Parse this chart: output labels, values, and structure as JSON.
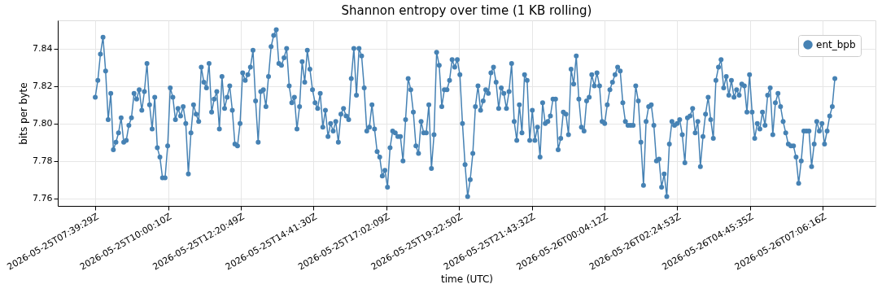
{
  "chart_data": {
    "type": "line",
    "title": "Shannon entropy over time (1 KB rolling)",
    "xlabel": "time (UTC)",
    "ylabel": "bits per byte",
    "x": [
      "2026-05-25T07:39:29",
      "2026-05-25T07:44:29",
      "2026-05-25T07:49:29",
      "2026-05-25T07:54:29",
      "2026-05-25T07:59:29",
      "2026-05-25T08:04:29",
      "2026-05-25T08:09:29",
      "2026-05-25T08:14:29",
      "2026-05-25T08:19:29",
      "2026-05-25T08:24:29",
      "2026-05-25T08:29:29",
      "2026-05-25T08:34:29",
      "2026-05-25T08:39:29",
      "2026-05-25T08:44:29",
      "2026-05-25T08:49:29",
      "2026-05-25T08:54:29",
      "2026-05-25T08:59:29",
      "2026-05-25T09:04:29",
      "2026-05-25T09:09:29",
      "2026-05-25T09:14:29",
      "2026-05-25T09:19:29",
      "2026-05-25T09:24:29",
      "2026-05-25T09:29:29",
      "2026-05-25T09:34:29",
      "2026-05-25T09:39:29",
      "2026-05-25T09:44:29",
      "2026-05-25T09:49:29",
      "2026-05-25T09:54:29",
      "2026-05-25T09:59:29",
      "2026-05-25T10:04:29",
      "2026-05-25T10:09:29",
      "2026-05-25T10:14:29",
      "2026-05-25T10:19:29",
      "2026-05-25T10:24:29",
      "2026-05-25T10:29:29",
      "2026-05-25T10:34:29",
      "2026-05-25T10:39:29",
      "2026-05-25T10:44:29",
      "2026-05-25T10:49:29",
      "2026-05-25T10:54:29",
      "2026-05-25T10:59:29",
      "2026-05-25T11:04:29",
      "2026-05-25T11:09:29",
      "2026-05-25T11:14:29",
      "2026-05-25T11:19:29",
      "2026-05-25T11:24:29",
      "2026-05-25T11:29:29",
      "2026-05-25T11:34:29",
      "2026-05-25T11:39:29",
      "2026-05-25T11:44:29",
      "2026-05-25T11:49:29",
      "2026-05-25T11:54:29",
      "2026-05-25T11:59:29",
      "2026-05-25T12:04:29",
      "2026-05-25T12:09:29",
      "2026-05-25T12:14:29",
      "2026-05-25T12:19:29",
      "2026-05-25T12:24:29",
      "2026-05-25T12:29:29",
      "2026-05-25T12:34:29",
      "2026-05-25T12:39:29",
      "2026-05-25T12:44:29",
      "2026-05-25T12:49:29",
      "2026-05-25T12:54:29",
      "2026-05-25T12:59:29",
      "2026-05-25T13:04:29",
      "2026-05-25T13:09:29",
      "2026-05-25T13:14:29",
      "2026-05-25T13:19:29",
      "2026-05-25T13:24:29",
      "2026-05-25T13:29:29",
      "2026-05-25T13:34:29",
      "2026-05-25T13:39:29",
      "2026-05-25T13:44:29",
      "2026-05-25T13:49:29",
      "2026-05-25T13:54:29",
      "2026-05-25T13:59:29",
      "2026-05-25T14:04:29",
      "2026-05-25T14:09:29",
      "2026-05-25T14:14:29",
      "2026-05-25T14:19:29",
      "2026-05-25T14:24:29",
      "2026-05-25T14:29:29",
      "2026-05-25T14:34:29",
      "2026-05-25T14:39:29",
      "2026-05-25T14:44:29",
      "2026-05-25T14:49:29",
      "2026-05-25T14:54:29",
      "2026-05-25T14:59:29",
      "2026-05-25T15:04:29",
      "2026-05-25T15:09:29",
      "2026-05-25T15:14:29",
      "2026-05-25T15:19:29",
      "2026-05-25T15:24:29",
      "2026-05-25T15:29:29",
      "2026-05-25T15:34:29",
      "2026-05-25T15:39:29",
      "2026-05-25T15:44:29",
      "2026-05-25T15:49:29",
      "2026-05-25T15:54:29",
      "2026-05-25T15:59:29",
      "2026-05-25T16:04:29",
      "2026-05-25T16:09:29",
      "2026-05-25T16:14:29",
      "2026-05-25T16:19:29",
      "2026-05-25T16:24:29",
      "2026-05-25T16:29:29",
      "2026-05-25T16:34:29",
      "2026-05-25T16:39:29",
      "2026-05-25T16:44:29",
      "2026-05-25T16:49:29",
      "2026-05-25T16:54:29",
      "2026-05-25T16:59:29",
      "2026-05-25T17:04:29",
      "2026-05-25T17:09:29",
      "2026-05-25T17:14:29",
      "2026-05-25T17:19:29",
      "2026-05-25T17:24:29",
      "2026-05-25T17:29:29",
      "2026-05-25T17:34:29",
      "2026-05-25T17:39:29",
      "2026-05-25T17:44:29",
      "2026-05-25T17:49:29",
      "2026-05-25T17:54:29",
      "2026-05-25T17:59:29",
      "2026-05-25T18:04:29",
      "2026-05-25T18:09:29",
      "2026-05-25T18:14:29",
      "2026-05-25T18:19:29",
      "2026-05-25T18:24:29",
      "2026-05-25T18:29:29",
      "2026-05-25T18:34:29",
      "2026-05-25T18:39:29",
      "2026-05-25T18:44:29",
      "2026-05-25T18:49:29",
      "2026-05-25T18:54:29",
      "2026-05-25T18:59:29",
      "2026-05-25T19:04:29",
      "2026-05-25T19:09:29",
      "2026-05-25T19:14:29",
      "2026-05-25T19:19:29",
      "2026-05-25T19:24:29",
      "2026-05-25T19:29:29",
      "2026-05-25T19:34:29",
      "2026-05-25T19:39:29",
      "2026-05-25T19:44:29",
      "2026-05-25T19:49:29",
      "2026-05-25T19:54:29",
      "2026-05-25T19:59:29",
      "2026-05-25T20:04:29",
      "2026-05-25T20:09:29",
      "2026-05-25T20:14:29",
      "2026-05-25T20:19:29",
      "2026-05-25T20:24:29",
      "2026-05-25T20:29:29",
      "2026-05-25T20:34:29",
      "2026-05-25T20:39:29",
      "2026-05-25T20:44:29",
      "2026-05-25T20:49:29",
      "2026-05-25T20:54:29",
      "2026-05-25T20:59:29",
      "2026-05-25T21:04:29",
      "2026-05-25T21:09:29",
      "2026-05-25T21:14:29",
      "2026-05-25T21:19:29",
      "2026-05-25T21:24:29",
      "2026-05-25T21:29:29",
      "2026-05-25T21:34:29",
      "2026-05-25T21:39:29",
      "2026-05-25T21:44:29",
      "2026-05-25T21:49:29",
      "2026-05-25T21:54:29",
      "2026-05-25T21:59:29",
      "2026-05-25T22:04:29",
      "2026-05-25T22:09:29",
      "2026-05-25T22:14:29",
      "2026-05-25T22:19:29",
      "2026-05-25T22:24:29",
      "2026-05-25T22:29:29",
      "2026-05-25T22:34:29",
      "2026-05-25T22:39:29",
      "2026-05-25T22:44:29",
      "2026-05-25T22:49:29",
      "2026-05-25T22:54:29",
      "2026-05-25T22:59:29",
      "2026-05-25T23:04:29",
      "2026-05-25T23:09:29",
      "2026-05-25T23:14:29",
      "2026-05-25T23:19:29",
      "2026-05-25T23:24:29",
      "2026-05-25T23:29:29",
      "2026-05-25T23:34:29",
      "2026-05-25T23:39:29",
      "2026-05-25T23:44:29",
      "2026-05-25T23:49:29",
      "2026-05-25T23:54:29",
      "2026-05-25T23:59:29",
      "2026-05-26T00:04:29",
      "2026-05-26T00:09:29",
      "2026-05-26T00:14:29",
      "2026-05-26T00:19:29",
      "2026-05-26T00:24:29",
      "2026-05-26T00:29:29",
      "2026-05-26T00:34:29",
      "2026-05-26T00:39:29",
      "2026-05-26T00:44:29",
      "2026-05-26T00:49:29",
      "2026-05-26T00:54:29",
      "2026-05-26T00:59:29",
      "2026-05-26T01:04:29",
      "2026-05-26T01:09:29",
      "2026-05-26T01:14:29",
      "2026-05-26T01:19:29",
      "2026-05-26T01:24:29",
      "2026-05-26T01:29:29",
      "2026-05-26T01:34:29",
      "2026-05-26T01:39:29",
      "2026-05-26T01:44:29",
      "2026-05-26T01:49:29",
      "2026-05-26T01:54:29",
      "2026-05-26T01:59:29",
      "2026-05-26T02:04:29",
      "2026-05-26T02:09:29",
      "2026-05-26T02:14:29",
      "2026-05-26T02:19:29",
      "2026-05-26T02:24:29",
      "2026-05-26T02:29:29",
      "2026-05-26T02:34:29",
      "2026-05-26T02:39:29",
      "2026-05-26T02:44:29",
      "2026-05-26T02:49:29",
      "2026-05-26T02:54:29",
      "2026-05-26T02:59:29",
      "2026-05-26T03:04:29",
      "2026-05-26T03:09:29",
      "2026-05-26T03:14:29",
      "2026-05-26T03:19:29",
      "2026-05-26T03:24:29",
      "2026-05-26T03:29:29",
      "2026-05-26T03:34:29",
      "2026-05-26T03:39:29",
      "2026-05-26T03:44:29",
      "2026-05-26T03:49:29",
      "2026-05-26T03:54:29",
      "2026-05-26T03:59:29",
      "2026-05-26T04:04:29",
      "2026-05-26T04:09:29",
      "2026-05-26T04:14:29",
      "2026-05-26T04:19:29",
      "2026-05-26T04:24:29",
      "2026-05-26T04:29:29",
      "2026-05-26T04:34:29",
      "2026-05-26T04:39:29",
      "2026-05-26T04:44:29",
      "2026-05-26T04:49:29",
      "2026-05-26T04:54:29",
      "2026-05-26T04:59:29",
      "2026-05-26T05:04:29",
      "2026-05-26T05:09:29",
      "2026-05-26T05:14:29",
      "2026-05-26T05:19:29",
      "2026-05-26T05:24:29",
      "2026-05-26T05:29:29",
      "2026-05-26T05:34:29",
      "2026-05-26T05:39:29",
      "2026-05-26T05:44:29",
      "2026-05-26T05:49:29",
      "2026-05-26T05:54:29",
      "2026-05-26T05:59:29",
      "2026-05-26T06:04:29",
      "2026-05-26T06:09:29",
      "2026-05-26T06:14:29",
      "2026-05-26T06:19:29",
      "2026-05-26T06:24:29",
      "2026-05-26T06:29:29",
      "2026-05-26T06:34:29",
      "2026-05-26T06:39:29",
      "2026-05-26T06:44:29",
      "2026-05-26T06:49:29",
      "2026-05-26T06:54:29",
      "2026-05-26T06:59:29",
      "2026-05-26T07:04:29",
      "2026-05-26T07:09:29",
      "2026-05-26T07:14:29",
      "2026-05-26T07:19:29",
      "2026-05-26T07:24:29",
      "2026-05-26T07:29:29"
    ],
    "series": [
      {
        "name": "ent_bpb",
        "color": "#4682b4",
        "values": [
          7.814,
          7.823,
          7.837,
          7.846,
          7.828,
          7.802,
          7.816,
          7.786,
          7.79,
          7.795,
          7.803,
          7.79,
          7.791,
          7.799,
          7.803,
          7.816,
          7.813,
          7.818,
          7.807,
          7.817,
          7.832,
          7.81,
          7.797,
          7.814,
          7.787,
          7.782,
          7.771,
          7.771,
          7.788,
          7.819,
          7.814,
          7.802,
          7.808,
          7.804,
          7.809,
          7.8,
          7.773,
          7.795,
          7.81,
          7.805,
          7.801,
          7.83,
          7.822,
          7.819,
          7.832,
          7.806,
          7.813,
          7.817,
          7.797,
          7.825,
          7.808,
          7.814,
          7.82,
          7.807,
          7.789,
          7.788,
          7.8,
          7.827,
          7.823,
          7.826,
          7.83,
          7.839,
          7.812,
          7.79,
          7.817,
          7.818,
          7.809,
          7.825,
          7.841,
          7.847,
          7.85,
          7.832,
          7.831,
          7.835,
          7.84,
          7.82,
          7.811,
          7.814,
          7.797,
          7.809,
          7.833,
          7.822,
          7.839,
          7.829,
          7.818,
          7.811,
          7.808,
          7.816,
          7.798,
          7.807,
          7.793,
          7.8,
          7.796,
          7.801,
          7.79,
          7.805,
          7.808,
          7.804,
          7.802,
          7.824,
          7.84,
          7.815,
          7.84,
          7.836,
          7.819,
          7.796,
          7.798,
          7.81,
          7.797,
          7.785,
          7.782,
          7.772,
          7.775,
          7.766,
          7.787,
          7.796,
          7.795,
          7.793,
          7.793,
          7.78,
          7.802,
          7.824,
          7.818,
          7.806,
          7.788,
          7.784,
          7.801,
          7.795,
          7.795,
          7.81,
          7.776,
          7.794,
          7.838,
          7.831,
          7.809,
          7.818,
          7.818,
          7.823,
          7.834,
          7.83,
          7.834,
          7.826,
          7.8,
          7.778,
          7.761,
          7.77,
          7.784,
          7.809,
          7.82,
          7.807,
          7.812,
          7.818,
          7.816,
          7.827,
          7.83,
          7.822,
          7.808,
          7.819,
          7.816,
          7.808,
          7.817,
          7.832,
          7.801,
          7.791,
          7.81,
          7.795,
          7.826,
          7.823,
          7.791,
          7.807,
          7.791,
          7.798,
          7.782,
          7.811,
          7.8,
          7.801,
          7.804,
          7.813,
          7.813,
          7.786,
          7.792,
          7.806,
          7.805,
          7.794,
          7.829,
          7.821,
          7.836,
          7.813,
          7.798,
          7.796,
          7.812,
          7.814,
          7.826,
          7.82,
          7.827,
          7.82,
          7.801,
          7.8,
          7.81,
          7.818,
          7.822,
          7.826,
          7.83,
          7.828,
          7.811,
          7.801,
          7.799,
          7.799,
          7.799,
          7.82,
          7.812,
          7.79,
          7.767,
          7.801,
          7.809,
          7.81,
          7.799,
          7.78,
          7.781,
          7.766,
          7.773,
          7.761,
          7.789,
          7.801,
          7.799,
          7.8,
          7.802,
          7.794,
          7.779,
          7.803,
          7.804,
          7.808,
          7.795,
          7.801,
          7.777,
          7.793,
          7.805,
          7.814,
          7.802,
          7.792,
          7.823,
          7.83,
          7.834,
          7.819,
          7.825,
          7.815,
          7.823,
          7.814,
          7.818,
          7.815,
          7.821,
          7.82,
          7.806,
          7.826,
          7.806,
          7.792,
          7.8,
          7.797,
          7.806,
          7.799,
          7.815,
          7.819,
          7.794,
          7.811,
          7.816,
          7.809,
          7.801,
          7.795,
          7.789,
          7.788,
          7.788,
          7.782,
          7.768,
          7.78,
          7.796,
          7.796,
          7.796,
          7.777,
          7.789,
          7.801,
          7.796,
          7.8,
          7.789,
          7.796,
          7.804,
          7.809,
          7.824
        ]
      }
    ],
    "xlim": [
      "2026-05-25T06:27:00",
      "2026-05-26T08:48:00"
    ],
    "xticks": [
      {
        "value": "2026-05-25T07:39:29",
        "label": "2026-05-25T07:39:29Z"
      },
      {
        "value": "2026-05-25T10:00:10",
        "label": "2026-05-25T10:00:10Z"
      },
      {
        "value": "2026-05-25T12:20:49",
        "label": "2026-05-25T12:20:49Z"
      },
      {
        "value": "2026-05-25T14:41:30",
        "label": "2026-05-25T14:41:30Z"
      },
      {
        "value": "2026-05-25T17:02:09",
        "label": "2026-05-25T17:02:09Z"
      },
      {
        "value": "2026-05-25T19:22:50",
        "label": "2026-05-25T19:22:50Z"
      },
      {
        "value": "2026-05-25T21:43:32",
        "label": "2026-05-25T21:43:32Z"
      },
      {
        "value": "2026-05-26T00:04:12",
        "label": "2026-05-26T00:04:12Z"
      },
      {
        "value": "2026-05-26T02:24:53",
        "label": "2026-05-26T02:24:53Z"
      },
      {
        "value": "2026-05-26T04:45:35",
        "label": "2026-05-26T04:45:35Z"
      },
      {
        "value": "2026-05-26T07:06:16",
        "label": "2026-05-26T07:06:16Z"
      }
    ],
    "ylim": [
      7.756,
      7.855
    ],
    "yticks": [
      {
        "value": 7.76,
        "label": "7.76"
      },
      {
        "value": 7.78,
        "label": "7.78"
      },
      {
        "value": 7.8,
        "label": "7.80"
      },
      {
        "value": 7.82,
        "label": "7.82"
      },
      {
        "value": 7.84,
        "label": "7.84"
      }
    ],
    "grid": true,
    "legend": "top right",
    "marker": "circle",
    "line_style": "solid"
  }
}
